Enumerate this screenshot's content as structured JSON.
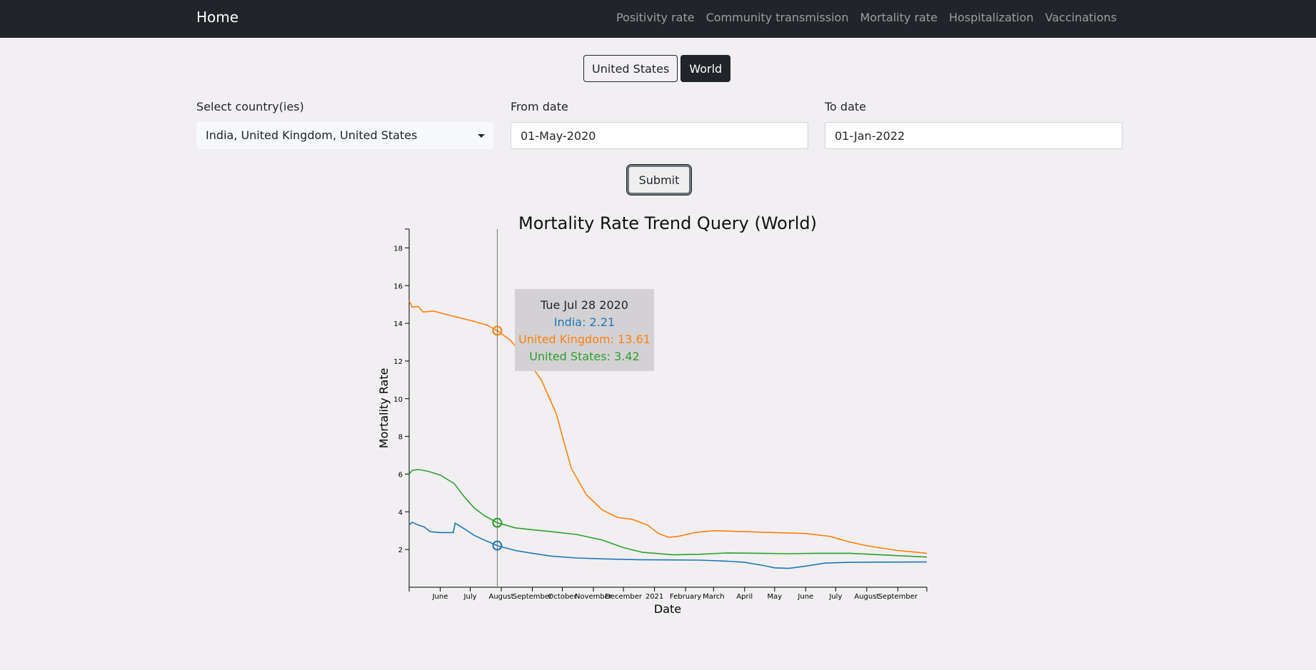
{
  "nav": {
    "brand": "Home",
    "links": [
      "Positivity rate",
      "Community transmission",
      "Mortality rate",
      "Hospitalization",
      "Vaccinations"
    ]
  },
  "region_toggle": {
    "options": [
      "United States",
      "World"
    ],
    "active": "World"
  },
  "form": {
    "country_label": "Select country(ies)",
    "country_value": "India, United Kingdom, United States",
    "from_label": "From date",
    "from_value": "01-May-2020",
    "to_label": "To date",
    "to_value": "01-Jan-2022",
    "submit_label": "Submit"
  },
  "tooltip": {
    "date": "Tue Jul 28 2020",
    "lines": [
      {
        "text": "India: 2.21",
        "color": "#1f77b4"
      },
      {
        "text": "United Kingdom: 13.61",
        "color": "#ff7f0e"
      },
      {
        "text": "United States: 3.42",
        "color": "#2ca02c"
      }
    ]
  },
  "chart_data": {
    "type": "line",
    "title": "Mortality Rate Trend Query (World)",
    "xlabel": "Date",
    "ylabel": "Mortality Rate",
    "ylim": [
      0,
      19
    ],
    "xlim": [
      "2020-05-01",
      "2021-09-30"
    ],
    "y_ticks": [
      2,
      4,
      6,
      8,
      10,
      12,
      14,
      16,
      18
    ],
    "x_ticks": [
      {
        "date": "2020-06-01",
        "label": "June"
      },
      {
        "date": "2020-07-01",
        "label": "July"
      },
      {
        "date": "2020-08-01",
        "label": "August"
      },
      {
        "date": "2020-09-01",
        "label": "September"
      },
      {
        "date": "2020-10-01",
        "label": "October"
      },
      {
        "date": "2020-11-01",
        "label": "November"
      },
      {
        "date": "2020-12-01",
        "label": "December"
      },
      {
        "date": "2021-01-01",
        "label": "2021"
      },
      {
        "date": "2021-02-01",
        "label": "February"
      },
      {
        "date": "2021-03-01",
        "label": "March"
      },
      {
        "date": "2021-04-01",
        "label": "April"
      },
      {
        "date": "2021-05-01",
        "label": "May"
      },
      {
        "date": "2021-06-01",
        "label": "June"
      },
      {
        "date": "2021-07-01",
        "label": "July"
      },
      {
        "date": "2021-08-01",
        "label": "August"
      },
      {
        "date": "2021-09-01",
        "label": "September"
      }
    ],
    "hover_date": "2020-07-28",
    "series": [
      {
        "name": "India",
        "color": "#1f77b4",
        "points": [
          [
            "2020-05-01",
            3.3
          ],
          [
            "2020-05-04",
            3.45
          ],
          [
            "2020-05-10",
            3.3
          ],
          [
            "2020-05-16",
            3.2
          ],
          [
            "2020-05-22",
            2.95
          ],
          [
            "2020-06-01",
            2.9
          ],
          [
            "2020-06-14",
            2.9
          ],
          [
            "2020-06-16",
            3.4
          ],
          [
            "2020-06-25",
            3.1
          ],
          [
            "2020-07-05",
            2.75
          ],
          [
            "2020-07-15",
            2.5
          ],
          [
            "2020-07-28",
            2.21
          ],
          [
            "2020-08-15",
            1.95
          ],
          [
            "2020-09-01",
            1.8
          ],
          [
            "2020-09-20",
            1.65
          ],
          [
            "2020-10-15",
            1.55
          ],
          [
            "2020-11-15",
            1.5
          ],
          [
            "2020-12-15",
            1.46
          ],
          [
            "2021-01-15",
            1.45
          ],
          [
            "2021-02-15",
            1.44
          ],
          [
            "2021-03-15",
            1.38
          ],
          [
            "2021-04-01",
            1.32
          ],
          [
            "2021-04-20",
            1.15
          ],
          [
            "2021-05-01",
            1.03
          ],
          [
            "2021-05-15",
            1.0
          ],
          [
            "2021-06-01",
            1.12
          ],
          [
            "2021-06-20",
            1.28
          ],
          [
            "2021-07-15",
            1.32
          ],
          [
            "2021-09-30",
            1.34
          ]
        ]
      },
      {
        "name": "United Kingdom",
        "color": "#ff7f0e",
        "points": [
          [
            "2020-05-01",
            15.2
          ],
          [
            "2020-05-04",
            14.85
          ],
          [
            "2020-05-10",
            14.9
          ],
          [
            "2020-05-15",
            14.6
          ],
          [
            "2020-05-25",
            14.65
          ],
          [
            "2020-06-05",
            14.5
          ],
          [
            "2020-06-20",
            14.3
          ],
          [
            "2020-07-05",
            14.1
          ],
          [
            "2020-07-18",
            13.9
          ],
          [
            "2020-07-28",
            13.61
          ],
          [
            "2020-08-10",
            13.1
          ],
          [
            "2020-08-25",
            12.2
          ],
          [
            "2020-09-10",
            11.0
          ],
          [
            "2020-09-25",
            9.2
          ],
          [
            "2020-10-01",
            8.0
          ],
          [
            "2020-10-10",
            6.3
          ],
          [
            "2020-10-25",
            4.9
          ],
          [
            "2020-11-10",
            4.1
          ],
          [
            "2020-11-25",
            3.7
          ],
          [
            "2020-12-10",
            3.6
          ],
          [
            "2020-12-25",
            3.3
          ],
          [
            "2021-01-05",
            2.85
          ],
          [
            "2021-01-15",
            2.65
          ],
          [
            "2021-01-25",
            2.7
          ],
          [
            "2021-02-10",
            2.9
          ],
          [
            "2021-03-01",
            3.0
          ],
          [
            "2021-04-01",
            2.95
          ],
          [
            "2021-05-01",
            2.9
          ],
          [
            "2021-06-01",
            2.85
          ],
          [
            "2021-06-25",
            2.7
          ],
          [
            "2021-07-15",
            2.4
          ],
          [
            "2021-08-01",
            2.2
          ],
          [
            "2021-09-01",
            1.95
          ],
          [
            "2021-09-30",
            1.8
          ]
        ]
      },
      {
        "name": "United States",
        "color": "#2ca02c",
        "points": [
          [
            "2020-05-01",
            6.0
          ],
          [
            "2020-05-04",
            6.2
          ],
          [
            "2020-05-10",
            6.25
          ],
          [
            "2020-05-20",
            6.15
          ],
          [
            "2020-06-01",
            5.95
          ],
          [
            "2020-06-15",
            5.5
          ],
          [
            "2020-06-25",
            4.8
          ],
          [
            "2020-07-05",
            4.2
          ],
          [
            "2020-07-15",
            3.8
          ],
          [
            "2020-07-28",
            3.42
          ],
          [
            "2020-08-15",
            3.15
          ],
          [
            "2020-09-01",
            3.05
          ],
          [
            "2020-09-20",
            2.95
          ],
          [
            "2020-10-15",
            2.8
          ],
          [
            "2020-11-10",
            2.5
          ],
          [
            "2020-12-01",
            2.1
          ],
          [
            "2020-12-20",
            1.85
          ],
          [
            "2021-01-20",
            1.72
          ],
          [
            "2021-02-15",
            1.75
          ],
          [
            "2021-03-15",
            1.82
          ],
          [
            "2021-04-15",
            1.8
          ],
          [
            "2021-05-15",
            1.78
          ],
          [
            "2021-06-15",
            1.8
          ],
          [
            "2021-07-15",
            1.8
          ],
          [
            "2021-08-15",
            1.72
          ],
          [
            "2021-09-30",
            1.6
          ]
        ]
      }
    ]
  }
}
